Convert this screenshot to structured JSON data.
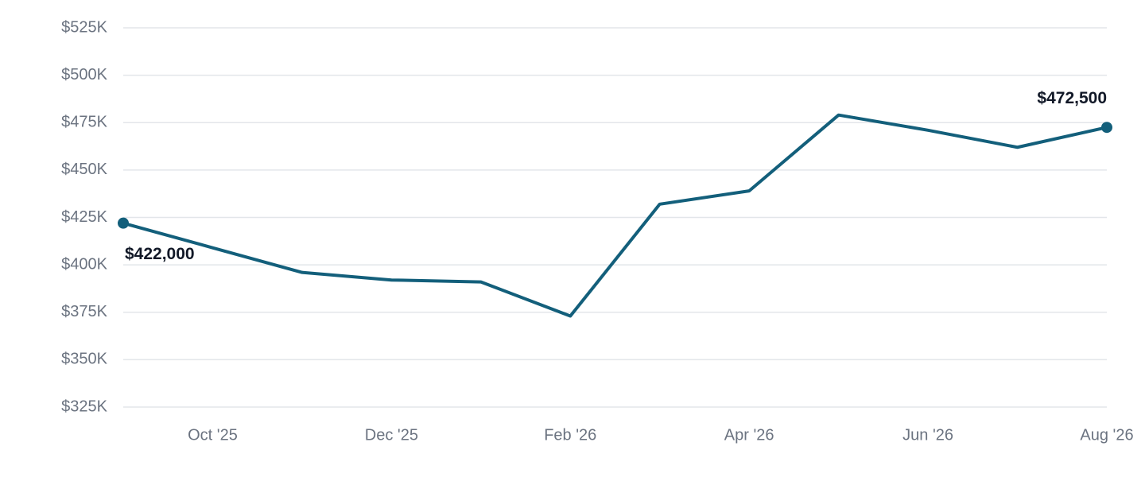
{
  "chart_data": {
    "type": "line",
    "categories": [
      null,
      "Oct '25",
      null,
      "Dec '25",
      null,
      "Feb '26",
      null,
      "Apr '26",
      null,
      "Jun '26",
      null,
      "Aug '26"
    ],
    "values": [
      422000,
      409000,
      396000,
      392000,
      391000,
      373000,
      432000,
      439000,
      479000,
      471000,
      462000,
      472500
    ],
    "value_labels": [
      "$422,000",
      null,
      null,
      null,
      null,
      null,
      null,
      null,
      null,
      null,
      null,
      "$472,500"
    ],
    "color": "#135f7b",
    "ylim": [
      325000,
      525000
    ],
    "yticks": [
      {
        "value": 325000,
        "label": "$325K"
      },
      {
        "value": 350000,
        "label": "$350K"
      },
      {
        "value": 375000,
        "label": "$375K"
      },
      {
        "value": 400000,
        "label": "$400K"
      },
      {
        "value": 425000,
        "label": "$425K"
      },
      {
        "value": 450000,
        "label": "$450K"
      },
      {
        "value": 475000,
        "label": "$475K"
      },
      {
        "value": 500000,
        "label": "$500K"
      },
      {
        "value": 525000,
        "label": "$525K"
      }
    ],
    "grid": true
  }
}
